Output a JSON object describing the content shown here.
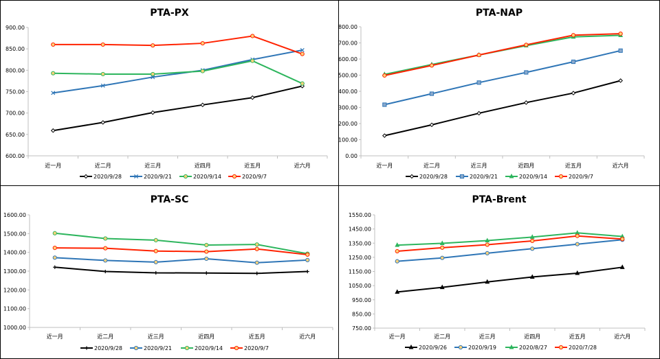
{
  "chart_data": [
    {
      "type": "line",
      "title": "PTA-PX",
      "categories": [
        "近一月",
        "近二月",
        "近三月",
        "近四月",
        "近五月",
        "近六月"
      ],
      "ylim": [
        600,
        900
      ],
      "ystep": 50,
      "yticks": [
        "900.00",
        "850.00",
        "800.00",
        "750.00",
        "700.00",
        "650.00",
        "600.00"
      ],
      "series": [
        {
          "name": "2020/9/28",
          "color": "#000000",
          "marker": "diamond",
          "values": [
            659,
            678,
            701,
            719,
            736,
            763
          ]
        },
        {
          "name": "2020/9/21",
          "color": "#2E75B6",
          "marker": "x",
          "values": [
            747,
            764,
            784,
            800,
            825,
            847
          ]
        },
        {
          "name": "2020/9/14",
          "color": "#2DB55D",
          "marker": "circle",
          "values": [
            793,
            791,
            791,
            798,
            822,
            769
          ]
        },
        {
          "name": "2020/9/7",
          "color": "#FF2200",
          "marker": "circle",
          "values": [
            860,
            860,
            858,
            863,
            880,
            838
          ]
        }
      ]
    },
    {
      "type": "line",
      "title": "PTA-NAP",
      "categories": [
        "近一月",
        "近二月",
        "近三月",
        "近四月",
        "近五月",
        "近六月"
      ],
      "ylim": [
        0,
        800
      ],
      "ystep": 100,
      "yticks": [
        "800.00",
        "700.00",
        "600.00",
        "500.00",
        "400.00",
        "300.00",
        "200.00",
        "100.00",
        "0.00"
      ],
      "series": [
        {
          "name": "2020/9/28",
          "color": "#000000",
          "marker": "diamond",
          "values": [
            125,
            192,
            264,
            330,
            389,
            466
          ]
        },
        {
          "name": "2020/9/21",
          "color": "#2E75B6",
          "marker": "square",
          "values": [
            317,
            385,
            454,
            517,
            583,
            652
          ]
        },
        {
          "name": "2020/9/14",
          "color": "#2DB55D",
          "marker": "triangle",
          "values": [
            505,
            566,
            625,
            683,
            737,
            747
          ]
        },
        {
          "name": "2020/9/7",
          "color": "#FF2200",
          "marker": "circle",
          "values": [
            498,
            560,
            625,
            688,
            748,
            757
          ]
        }
      ]
    },
    {
      "type": "line",
      "title": "PTA-SC",
      "categories": [
        "近一月",
        "近二月",
        "近三月",
        "近四月",
        "近五月",
        "近六月"
      ],
      "ylim": [
        1000,
        1600
      ],
      "ystep": 100,
      "yticks": [
        "1600.00",
        "1500.00",
        "1400.00",
        "1300.00",
        "1200.00",
        "1100.00",
        "1000.00"
      ],
      "series": [
        {
          "name": "2020/9/28",
          "color": "#000000",
          "marker": "plus",
          "values": [
            1321,
            1298,
            1291,
            1290,
            1288,
            1298
          ]
        },
        {
          "name": "2020/9/21",
          "color": "#2E75B6",
          "marker": "circle",
          "values": [
            1372,
            1357,
            1348,
            1366,
            1345,
            1359
          ]
        },
        {
          "name": "2020/9/14",
          "color": "#2DB55D",
          "marker": "circle",
          "values": [
            1502,
            1474,
            1465,
            1439,
            1442,
            1393
          ]
        },
        {
          "name": "2020/9/7",
          "color": "#FF2200",
          "marker": "circle",
          "values": [
            1424,
            1422,
            1407,
            1404,
            1418,
            1388
          ]
        }
      ]
    },
    {
      "type": "line",
      "title": "PTA-Brent",
      "categories": [
        "近一月",
        "近二月",
        "近三月",
        "近四月",
        "近五月",
        "近六月"
      ],
      "ylim": [
        750,
        1550
      ],
      "ystep": 100,
      "yticks": [
        "1550.00",
        "1450.00",
        "1350.00",
        "1250.00",
        "1150.00",
        "1050.00",
        "950.00",
        "850.00",
        "750.00"
      ],
      "series": [
        {
          "name": "2020/9/26",
          "color": "#000000",
          "marker": "triangle",
          "values": [
            1005,
            1038,
            1076,
            1111,
            1138,
            1180
          ]
        },
        {
          "name": "2020/9/19",
          "color": "#2E75B6",
          "marker": "circle",
          "values": [
            1222,
            1246,
            1279,
            1311,
            1343,
            1374
          ]
        },
        {
          "name": "2020/8/27",
          "color": "#2DB55D",
          "marker": "triangle",
          "values": [
            1336,
            1349,
            1368,
            1393,
            1423,
            1397
          ]
        },
        {
          "name": "2020/7/28",
          "color": "#FF2200",
          "marker": "circle",
          "values": [
            1293,
            1318,
            1339,
            1366,
            1401,
            1379
          ]
        }
      ]
    }
  ]
}
